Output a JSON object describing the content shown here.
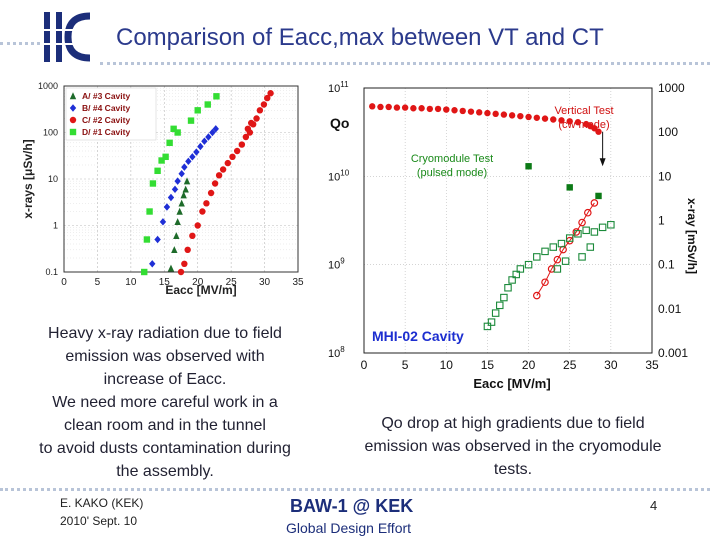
{
  "header": {
    "title": "Comparison of Eacc,max between VT and CT",
    "logo_text": "ilc"
  },
  "colors": {
    "dark_green": "#1e6b2a",
    "blue": "#1f2fd6",
    "red": "#e01616",
    "light_green": "#33dd33",
    "cm_green": "#0c7a16",
    "open_green": "#1b8a3a",
    "title_blue": "#2b3a8c"
  },
  "left_text": [
    "Heavy x-ray radiation due to field",
    "emission was observed with",
    "increase of Eacc.",
    "We need more careful work in a",
    "clean room and in the tunnel",
    "to avoid dusts contamination during",
    "the assembly."
  ],
  "right_text": [
    "Qo drop at high gradients due to field",
    "emission was observed in the cryomodule",
    "tests."
  ],
  "footer": {
    "author": "E. KAKO (KEK)",
    "date": "2010' Sept. 10",
    "event": "BAW-1 @ KEK",
    "org": "Global Design Effort",
    "page": "4"
  },
  "chart_data": [
    {
      "type": "scatter",
      "title": "",
      "xlabel": "Eacc [MV/m]",
      "ylabel": "x-rays [μSv/h]",
      "xlim": [
        0,
        35
      ],
      "ylim": [
        0.1,
        1000
      ],
      "yscale": "log",
      "x_ticks": [
        "0",
        "5",
        "10",
        "15",
        "20",
        "25",
        "30",
        "35"
      ],
      "y_ticks": [
        "0.1",
        "1",
        "10",
        "100",
        "1000"
      ],
      "legend": [
        "A/ #3 Cavity",
        "B/ #4 Cavity",
        "C/ #2 Cavity",
        "D/ #1 Cavity"
      ],
      "series": [
        {
          "name": "A/ #3 Cavity",
          "marker": "triangle",
          "color": "#1e6b2a",
          "points": [
            [
              16,
              0.12
            ],
            [
              16.5,
              0.3
            ],
            [
              16.8,
              0.6
            ],
            [
              17,
              1.2
            ],
            [
              17.3,
              2
            ],
            [
              17.6,
              3
            ],
            [
              17.9,
              4.5
            ],
            [
              18.2,
              6
            ],
            [
              18.4,
              9
            ]
          ]
        },
        {
          "name": "B/ #4 Cavity",
          "marker": "diamond",
          "color": "#1f2fd6",
          "points": [
            [
              13.2,
              0.15
            ],
            [
              14,
              0.5
            ],
            [
              14.8,
              1.2
            ],
            [
              15.4,
              2.5
            ],
            [
              16,
              4
            ],
            [
              16.6,
              6
            ],
            [
              17,
              9
            ],
            [
              17.6,
              13
            ],
            [
              18,
              18
            ],
            [
              18.6,
              24
            ],
            [
              19.2,
              30
            ],
            [
              19.8,
              38
            ],
            [
              20.4,
              50
            ],
            [
              21,
              65
            ],
            [
              21.6,
              80
            ],
            [
              22.2,
              100
            ],
            [
              22.7,
              120
            ]
          ]
        },
        {
          "name": "C/ #2 Cavity",
          "marker": "circle",
          "color": "#e01616",
          "points": [
            [
              17.5,
              0.1
            ],
            [
              18,
              0.15
            ],
            [
              18.5,
              0.3
            ],
            [
              19.2,
              0.6
            ],
            [
              20,
              1
            ],
            [
              20.7,
              2
            ],
            [
              21.3,
              3
            ],
            [
              22,
              5
            ],
            [
              22.6,
              8
            ],
            [
              23.2,
              12
            ],
            [
              23.8,
              16
            ],
            [
              24.5,
              22
            ],
            [
              25.2,
              30
            ],
            [
              25.9,
              40
            ],
            [
              26.6,
              55
            ],
            [
              27.2,
              80
            ],
            [
              27.8,
              100
            ],
            [
              28.3,
              150
            ],
            [
              28.8,
              200
            ],
            [
              29.3,
              300
            ],
            [
              29.9,
              400
            ],
            [
              30.4,
              550
            ],
            [
              30.9,
              700
            ],
            [
              27.5,
              120
            ],
            [
              28,
              160
            ]
          ]
        },
        {
          "name": "D/ #1 Cavity",
          "marker": "square",
          "color": "#33dd33",
          "points": [
            [
              12,
              0.1
            ],
            [
              12.4,
              0.5
            ],
            [
              12.8,
              2
            ],
            [
              13.3,
              8
            ],
            [
              14,
              15
            ],
            [
              14.6,
              25
            ],
            [
              15.2,
              30
            ],
            [
              15.8,
              60
            ],
            [
              16.4,
              120
            ],
            [
              17,
              100
            ],
            [
              19,
              180
            ],
            [
              20,
              300
            ],
            [
              21.5,
              400
            ],
            [
              22.8,
              600
            ]
          ]
        }
      ]
    },
    {
      "type": "scatter",
      "title": "MHI-02 Cavity",
      "xlabel": "Eacc [MV/m]",
      "ylabel_left": "Qo",
      "ylabel_right": "x-ray [mSv/h]",
      "xlim": [
        0,
        35
      ],
      "ylim": [
        100000000.0,
        100000000000.0
      ],
      "yscale": "log",
      "y2lim": [
        0.001,
        1000
      ],
      "x_ticks": [
        "0",
        "5",
        "10",
        "15",
        "20",
        "25",
        "30",
        "35"
      ],
      "y_ticks": [
        "10^8",
        "10^9",
        "10^10",
        "10^11"
      ],
      "y2_ticks": [
        "0.001",
        "0.01",
        "0.1",
        "1",
        "10",
        "100",
        "1000"
      ],
      "annotations": [
        "Vertical Test",
        "(cw mode)",
        "Cryomodule Test",
        "(pulsed mode)"
      ],
      "series": [
        {
          "name": "Vertical Test Qo",
          "marker": "circle",
          "color": "#e01616",
          "axis": "left",
          "points": [
            [
              1,
              62000000000.0
            ],
            [
              2,
              61000000000.0
            ],
            [
              3,
              61000000000.0
            ],
            [
              4,
              60000000000.0
            ],
            [
              5,
              60000000000.0
            ],
            [
              6,
              59000000000.0
            ],
            [
              7,
              59000000000.0
            ],
            [
              8,
              58000000000.0
            ],
            [
              9,
              58000000000.0
            ],
            [
              10,
              57000000000.0
            ],
            [
              11,
              56000000000.0
            ],
            [
              12,
              55000000000.0
            ],
            [
              13,
              54000000000.0
            ],
            [
              14,
              53000000000.0
            ],
            [
              15,
              52000000000.0
            ],
            [
              16,
              51000000000.0
            ],
            [
              17,
              50000000000.0
            ],
            [
              18,
              49000000000.0
            ],
            [
              19,
              48000000000.0
            ],
            [
              20,
              47000000000.0
            ],
            [
              21,
              46000000000.0
            ],
            [
              22,
              45000000000.0
            ],
            [
              23,
              44000000000.0
            ],
            [
              24,
              43000000000.0
            ],
            [
              25,
              42000000000.0
            ],
            [
              26,
              41000000000.0
            ],
            [
              27,
              39000000000.0
            ],
            [
              27.5,
              37000000000.0
            ],
            [
              28,
              35000000000.0
            ],
            [
              28.5,
              32000000000.0
            ]
          ]
        },
        {
          "name": "Cryomodule Test Qo",
          "marker": "square",
          "color": "#0c7a16",
          "axis": "left",
          "points": [
            [
              20,
              13000000000.0
            ],
            [
              25,
              7500000000.0
            ],
            [
              28.5,
              6000000000.0
            ]
          ]
        },
        {
          "name": "Vertical Test x-ray",
          "marker": "open-circle",
          "color": "#e01616",
          "axis": "right",
          "points": [
            [
              21,
              0.02
            ],
            [
              22,
              0.04
            ],
            [
              22.8,
              0.08
            ],
            [
              23.5,
              0.13
            ],
            [
              24.2,
              0.22
            ],
            [
              25,
              0.35
            ],
            [
              25.8,
              0.55
            ],
            [
              26.5,
              0.9
            ],
            [
              27.2,
              1.5
            ],
            [
              28,
              2.5
            ]
          ]
        },
        {
          "name": "Cryomodule Test x-ray",
          "marker": "open-square",
          "color": "#1b8a3a",
          "axis": "right",
          "points": [
            [
              15,
              0.004
            ],
            [
              15.5,
              0.005
            ],
            [
              16,
              0.008
            ],
            [
              16.5,
              0.012
            ],
            [
              17,
              0.018
            ],
            [
              17.5,
              0.03
            ],
            [
              18,
              0.045
            ],
            [
              18.5,
              0.06
            ],
            [
              19,
              0.08
            ],
            [
              20,
              0.1
            ],
            [
              21,
              0.15
            ],
            [
              22,
              0.2
            ],
            [
              23,
              0.25
            ],
            [
              24,
              0.3
            ],
            [
              25,
              0.4
            ],
            [
              26,
              0.5
            ],
            [
              27,
              0.6
            ],
            [
              28,
              0.55
            ],
            [
              29,
              0.7
            ],
            [
              30,
              0.8
            ],
            [
              26.5,
              0.15
            ],
            [
              27.5,
              0.25
            ],
            [
              24.5,
              0.12
            ],
            [
              23.5,
              0.08
            ]
          ]
        }
      ]
    }
  ]
}
